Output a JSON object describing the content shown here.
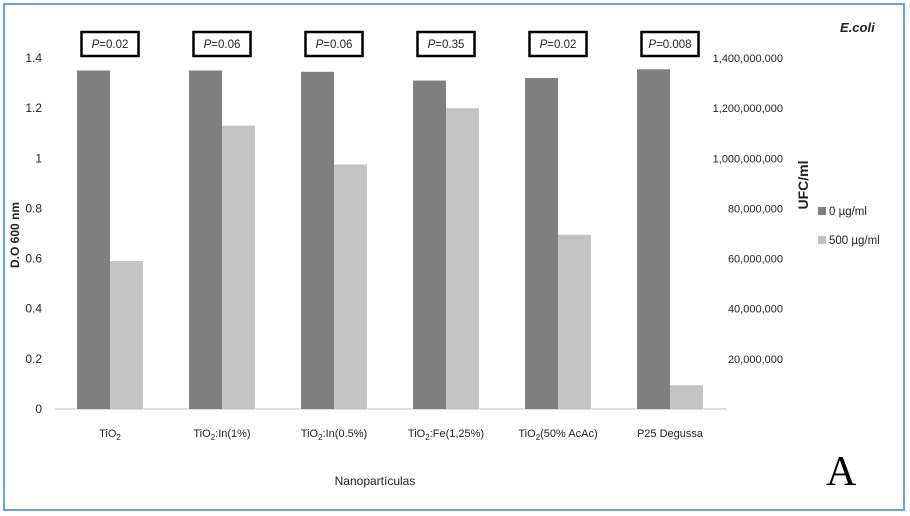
{
  "figure": {
    "species": "E.coli",
    "panel_label": "A"
  },
  "colors": {
    "series_0": "#7f7f7f",
    "series_500": "#c3c3c3",
    "frame": "#6fa1d6",
    "axis": "#bfbfbf"
  },
  "chart_data": {
    "type": "bar",
    "title": "",
    "xlabel": "Nanopartículas",
    "ylabel": "D.O 600 nm",
    "y2label": "UFC/ml",
    "ylim": [
      0,
      1.4
    ],
    "yticks": [
      "0",
      "0.2",
      "0.4",
      "0.6",
      "0.8",
      "1",
      "1.2",
      "1.4"
    ],
    "y2ticks": [
      "20,000,000",
      "40,000,000",
      "60,000,000",
      "80,000,000",
      "1,000,000,000",
      "1,200,000,000",
      "1,400,000,000"
    ],
    "categories": [
      {
        "main": "TiO",
        "sub": "2",
        "rest": ""
      },
      {
        "main": "TiO",
        "sub": "2",
        "rest": ":In(1%)"
      },
      {
        "main": "TiO",
        "sub": "2",
        "rest": ":In(0.5%)"
      },
      {
        "main": "TiO",
        "sub": "2",
        "rest": ":Fe(1,25%)"
      },
      {
        "main": "TiO",
        "sub": "2",
        "rest": "(50% AcAc)"
      },
      {
        "main": "P25 Degussa",
        "sub": "",
        "rest": ""
      }
    ],
    "series": [
      {
        "name": "0 µg/ml",
        "values": [
          1.35,
          1.35,
          1.345,
          1.31,
          1.32,
          1.355
        ]
      },
      {
        "name": "500 µg/ml",
        "values": [
          0.59,
          1.13,
          0.975,
          1.2,
          0.695,
          0.095
        ]
      }
    ],
    "pvalues": [
      "=0.02",
      "=0.06",
      "=0.06",
      "=0.35",
      "=0.02",
      "=0.008"
    ],
    "p_symbol": "P",
    "grid": false,
    "legend_position": "right"
  }
}
